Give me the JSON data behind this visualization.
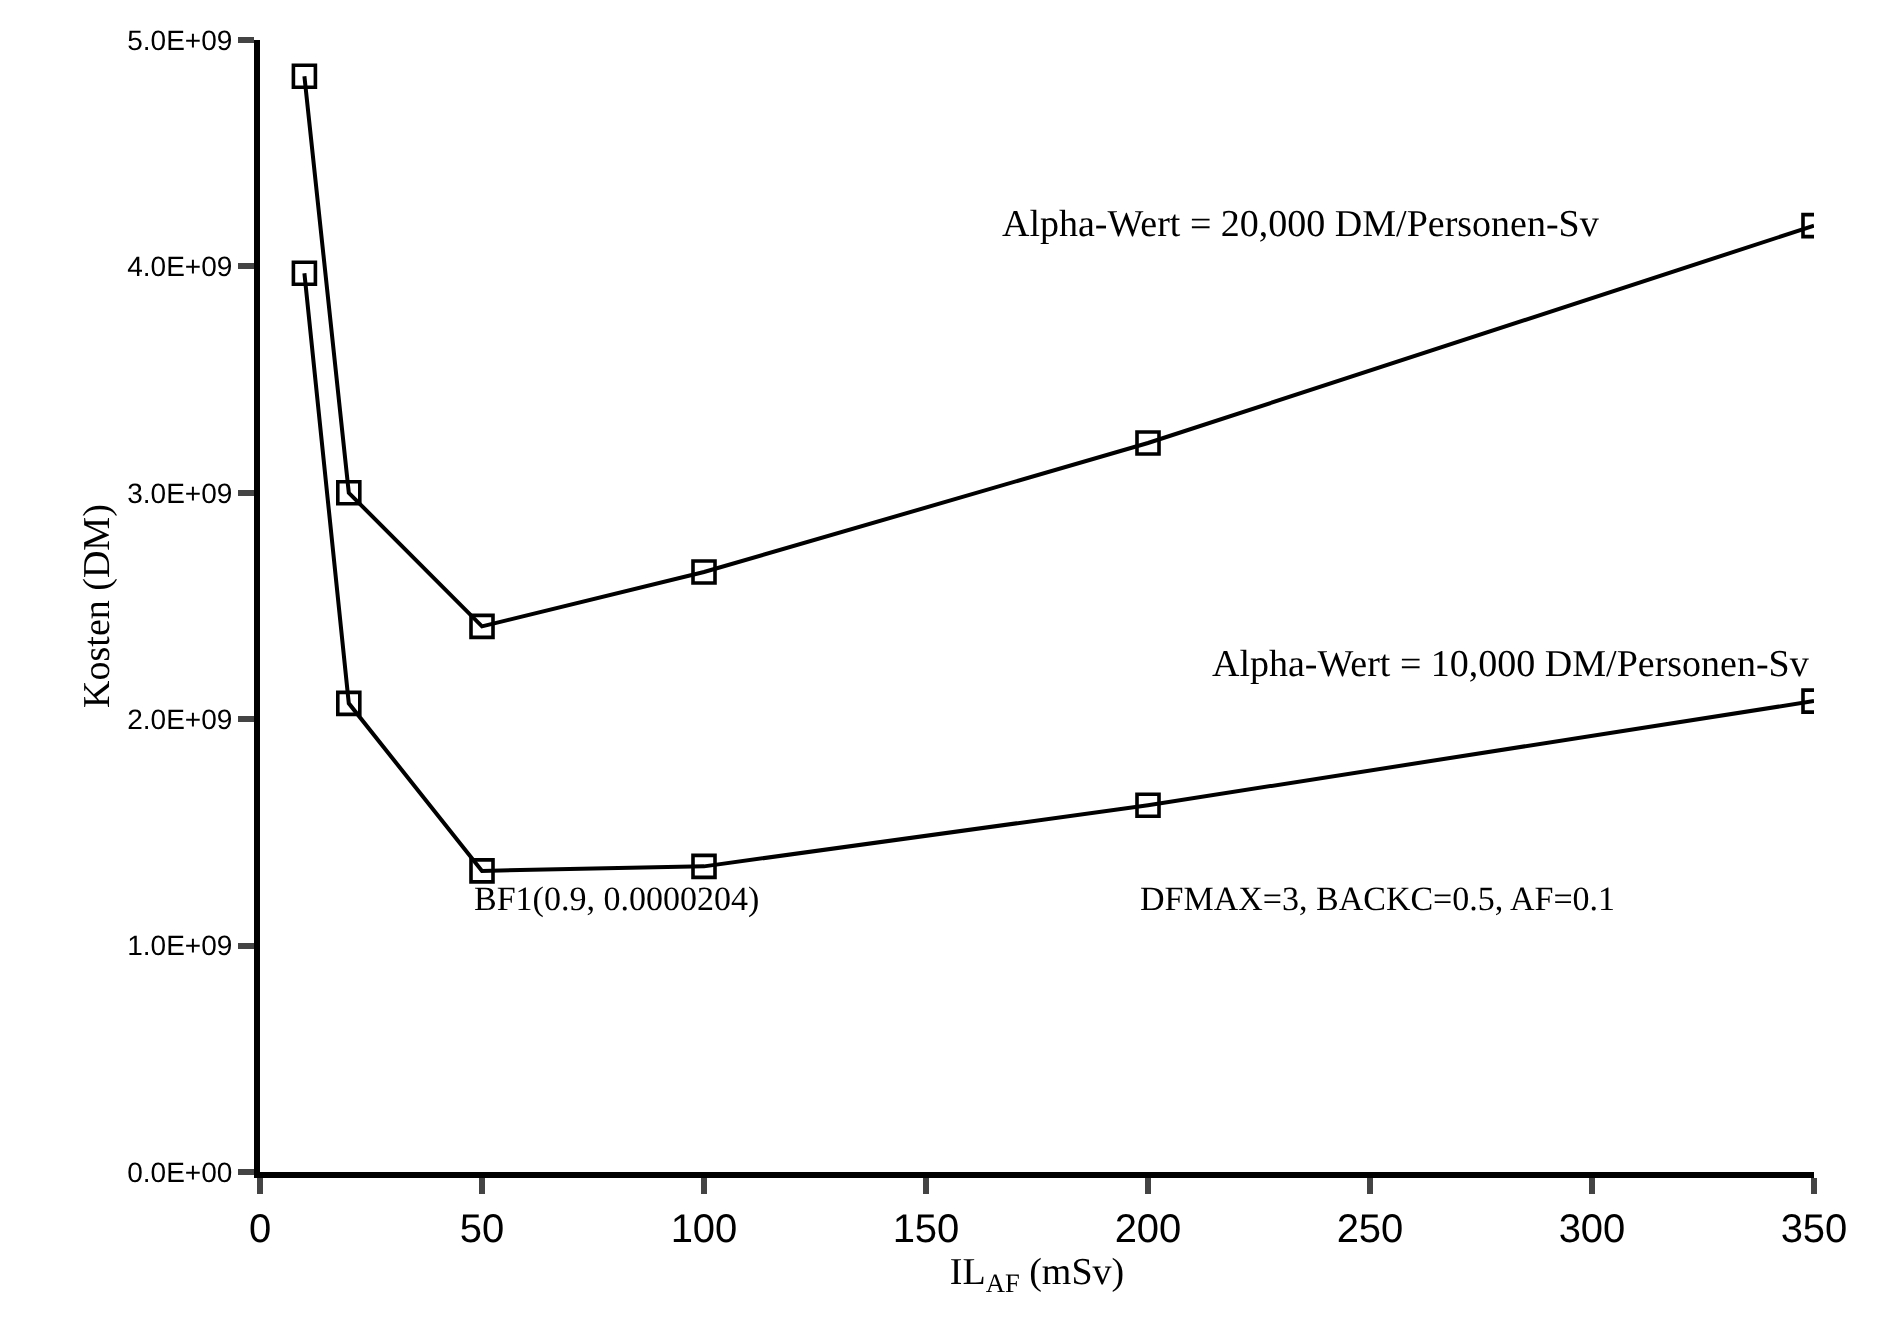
{
  "chart_data": {
    "type": "line",
    "ylabel": "Kosten (DM)",
    "xlabel": "IL$_{AF}$ (mSv)",
    "x": [
      10,
      20,
      50,
      100,
      200,
      350
    ],
    "series": [
      {
        "name": "Alpha-Wert = 20,000 DM/Personen-Sv",
        "color": "#000000",
        "values": [
          4840000000.0,
          3000000000.0,
          2410000000.0,
          2650000000.0,
          3220000000.0,
          4180000000.0
        ]
      },
      {
        "name": "Alpha-Wert = 10,000 DM/Personen-Sv",
        "color": "#000000",
        "values": [
          3970000000.0,
          2070000000.0,
          1330000000.0,
          1350000000.0,
          1620000000.0,
          2080000000.0
        ]
      }
    ],
    "annotations": [
      "BF1(0.9, 0.0000204)",
      "DFMAX=3, BACKC=0.5, AF=0.1"
    ],
    "xlim": [
      0,
      350
    ],
    "xticks": [
      0,
      50,
      100,
      150,
      200,
      250,
      300,
      350
    ],
    "ylim": [
      0,
      5000000000.0
    ],
    "yticks": [
      {
        "value": 0,
        "label": "0.0E+00"
      },
      {
        "value": 1000000000.0,
        "label": "1.0E+09"
      },
      {
        "value": 2000000000.0,
        "label": "2.0E+09"
      },
      {
        "value": 3000000000.0,
        "label": "3.0E+09"
      },
      {
        "value": 4000000000.0,
        "label": "4.0E+09"
      },
      {
        "value": 5000000000.0,
        "label": "5.0E+09"
      }
    ],
    "marker": "square",
    "line_style": "solid",
    "legend": false
  }
}
